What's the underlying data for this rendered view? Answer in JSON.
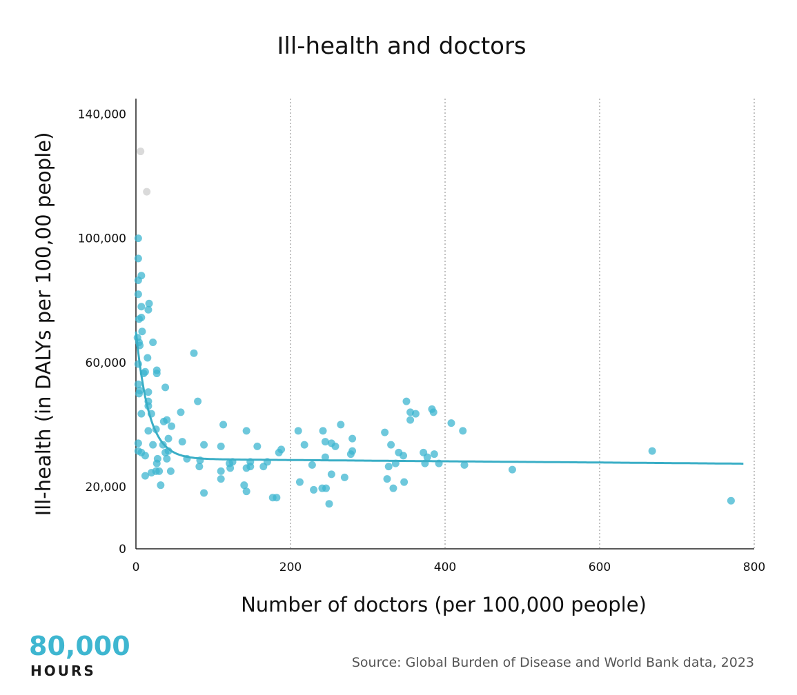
{
  "chart_data": {
    "type": "scatter",
    "title": "Ill-health and doctors",
    "xlabel": "Number of doctors (per 100,000 people)",
    "ylabel": "Ill-health (in DALYs per 100,00 people)",
    "xlim": [
      0,
      800
    ],
    "ylim": [
      0,
      145000
    ],
    "x_ticks": [
      0,
      200,
      400,
      600,
      800
    ],
    "x_tick_labels": [
      "0",
      "200",
      "400",
      "600",
      "800"
    ],
    "y_ticks": [
      0,
      20000,
      60000,
      100000,
      140000
    ],
    "y_tick_labels": [
      "0",
      "20,000",
      "60,000",
      "100,000",
      "140,000"
    ],
    "grid": "vertical dotted lines",
    "point_color": "#3eb6d0",
    "outlier_color": "#d6d6d6",
    "trend_color": "#3aaec6",
    "outliers": [
      {
        "x": 6,
        "y": 128000
      },
      {
        "x": 14,
        "y": 115000
      }
    ],
    "points": [
      {
        "x": 3,
        "y": 100000
      },
      {
        "x": 3,
        "y": 93500
      },
      {
        "x": 3,
        "y": 86500
      },
      {
        "x": 7,
        "y": 88000
      },
      {
        "x": 3,
        "y": 82000
      },
      {
        "x": 17,
        "y": 79000
      },
      {
        "x": 7,
        "y": 78000
      },
      {
        "x": 16,
        "y": 77000
      },
      {
        "x": 7,
        "y": 74500
      },
      {
        "x": 4,
        "y": 74000
      },
      {
        "x": 8,
        "y": 70000
      },
      {
        "x": 2,
        "y": 68000
      },
      {
        "x": 4,
        "y": 66500
      },
      {
        "x": 5,
        "y": 65500
      },
      {
        "x": 22,
        "y": 66500
      },
      {
        "x": 15,
        "y": 61500
      },
      {
        "x": 3,
        "y": 59500
      },
      {
        "x": 27,
        "y": 57500
      },
      {
        "x": 27,
        "y": 56500
      },
      {
        "x": 10,
        "y": 56500
      },
      {
        "x": 12,
        "y": 57000
      },
      {
        "x": 3,
        "y": 53000
      },
      {
        "x": 38,
        "y": 52000
      },
      {
        "x": 5,
        "y": 51000
      },
      {
        "x": 16,
        "y": 50500
      },
      {
        "x": 4,
        "y": 50000
      },
      {
        "x": 16,
        "y": 47500
      },
      {
        "x": 75,
        "y": 63000
      },
      {
        "x": 80,
        "y": 47500
      },
      {
        "x": 16,
        "y": 46000
      },
      {
        "x": 7,
        "y": 43500
      },
      {
        "x": 20,
        "y": 43500
      },
      {
        "x": 58,
        "y": 44000
      },
      {
        "x": 40,
        "y": 41500
      },
      {
        "x": 36,
        "y": 41000
      },
      {
        "x": 46,
        "y": 39500
      },
      {
        "x": 26,
        "y": 38500
      },
      {
        "x": 16,
        "y": 38000
      },
      {
        "x": 113,
        "y": 40000
      },
      {
        "x": 143,
        "y": 38000
      },
      {
        "x": 210,
        "y": 38000
      },
      {
        "x": 42,
        "y": 35500
      },
      {
        "x": 60,
        "y": 34500
      },
      {
        "x": 22,
        "y": 33500
      },
      {
        "x": 35,
        "y": 33500
      },
      {
        "x": 88,
        "y": 33500
      },
      {
        "x": 110,
        "y": 33000
      },
      {
        "x": 157,
        "y": 33000
      },
      {
        "x": 3,
        "y": 34000
      },
      {
        "x": 3,
        "y": 31500
      },
      {
        "x": 7,
        "y": 31000
      },
      {
        "x": 12,
        "y": 30000
      },
      {
        "x": 38,
        "y": 31000
      },
      {
        "x": 42,
        "y": 31500
      },
      {
        "x": 28,
        "y": 29000
      },
      {
        "x": 40,
        "y": 29000
      },
      {
        "x": 66,
        "y": 29000
      },
      {
        "x": 83,
        "y": 28500
      },
      {
        "x": 27,
        "y": 27500
      },
      {
        "x": 125,
        "y": 28000
      },
      {
        "x": 121,
        "y": 27500
      },
      {
        "x": 148,
        "y": 28000
      },
      {
        "x": 170,
        "y": 28000
      },
      {
        "x": 185,
        "y": 31000
      },
      {
        "x": 188,
        "y": 32000
      },
      {
        "x": 218,
        "y": 33500
      },
      {
        "x": 242,
        "y": 38000
      },
      {
        "x": 265,
        "y": 40000
      },
      {
        "x": 245,
        "y": 34500
      },
      {
        "x": 253,
        "y": 34000
      },
      {
        "x": 258,
        "y": 33000
      },
      {
        "x": 280,
        "y": 35500
      },
      {
        "x": 278,
        "y": 30500
      },
      {
        "x": 280,
        "y": 31500
      },
      {
        "x": 245,
        "y": 29500
      },
      {
        "x": 228,
        "y": 27000
      },
      {
        "x": 82,
        "y": 26500
      },
      {
        "x": 122,
        "y": 26000
      },
      {
        "x": 148,
        "y": 26500
      },
      {
        "x": 143,
        "y": 26000
      },
      {
        "x": 165,
        "y": 26500
      },
      {
        "x": 110,
        "y": 25000
      },
      {
        "x": 26,
        "y": 25000
      },
      {
        "x": 30,
        "y": 25000
      },
      {
        "x": 45,
        "y": 25000
      },
      {
        "x": 20,
        "y": 24500
      },
      {
        "x": 12,
        "y": 23500
      },
      {
        "x": 110,
        "y": 22500
      },
      {
        "x": 32,
        "y": 20500
      },
      {
        "x": 140,
        "y": 20500
      },
      {
        "x": 212,
        "y": 21500
      },
      {
        "x": 253,
        "y": 24000
      },
      {
        "x": 270,
        "y": 23000
      },
      {
        "x": 88,
        "y": 18000
      },
      {
        "x": 143,
        "y": 18500
      },
      {
        "x": 230,
        "y": 19000
      },
      {
        "x": 241,
        "y": 19500
      },
      {
        "x": 246,
        "y": 19500
      },
      {
        "x": 177,
        "y": 16500
      },
      {
        "x": 182,
        "y": 16500
      },
      {
        "x": 250,
        "y": 14500
      },
      {
        "x": 350,
        "y": 47500
      },
      {
        "x": 355,
        "y": 44000
      },
      {
        "x": 362,
        "y": 43500
      },
      {
        "x": 383,
        "y": 45000
      },
      {
        "x": 385,
        "y": 44000
      },
      {
        "x": 355,
        "y": 41500
      },
      {
        "x": 408,
        "y": 40500
      },
      {
        "x": 423,
        "y": 38000
      },
      {
        "x": 322,
        "y": 37500
      },
      {
        "x": 330,
        "y": 33500
      },
      {
        "x": 340,
        "y": 31000
      },
      {
        "x": 346,
        "y": 30000
      },
      {
        "x": 372,
        "y": 31000
      },
      {
        "x": 386,
        "y": 30500
      },
      {
        "x": 377,
        "y": 29500
      },
      {
        "x": 336,
        "y": 27500
      },
      {
        "x": 374,
        "y": 27500
      },
      {
        "x": 392,
        "y": 27500
      },
      {
        "x": 425,
        "y": 27000
      },
      {
        "x": 327,
        "y": 26500
      },
      {
        "x": 325,
        "y": 22500
      },
      {
        "x": 347,
        "y": 21500
      },
      {
        "x": 333,
        "y": 19500
      },
      {
        "x": 487,
        "y": 25500
      },
      {
        "x": 668,
        "y": 31500
      },
      {
        "x": 770,
        "y": 15500
      }
    ],
    "trend_line": {
      "description": "exponential decay fit",
      "asymptote": 29000,
      "start_y": 70000,
      "decay_per_unit_x": 0.06,
      "x_range": [
        0,
        787
      ]
    }
  },
  "source": "Source: Global Burden of Disease and World Bank data, 2023",
  "logo": {
    "top": "80,000",
    "bottom": "HOURS"
  }
}
